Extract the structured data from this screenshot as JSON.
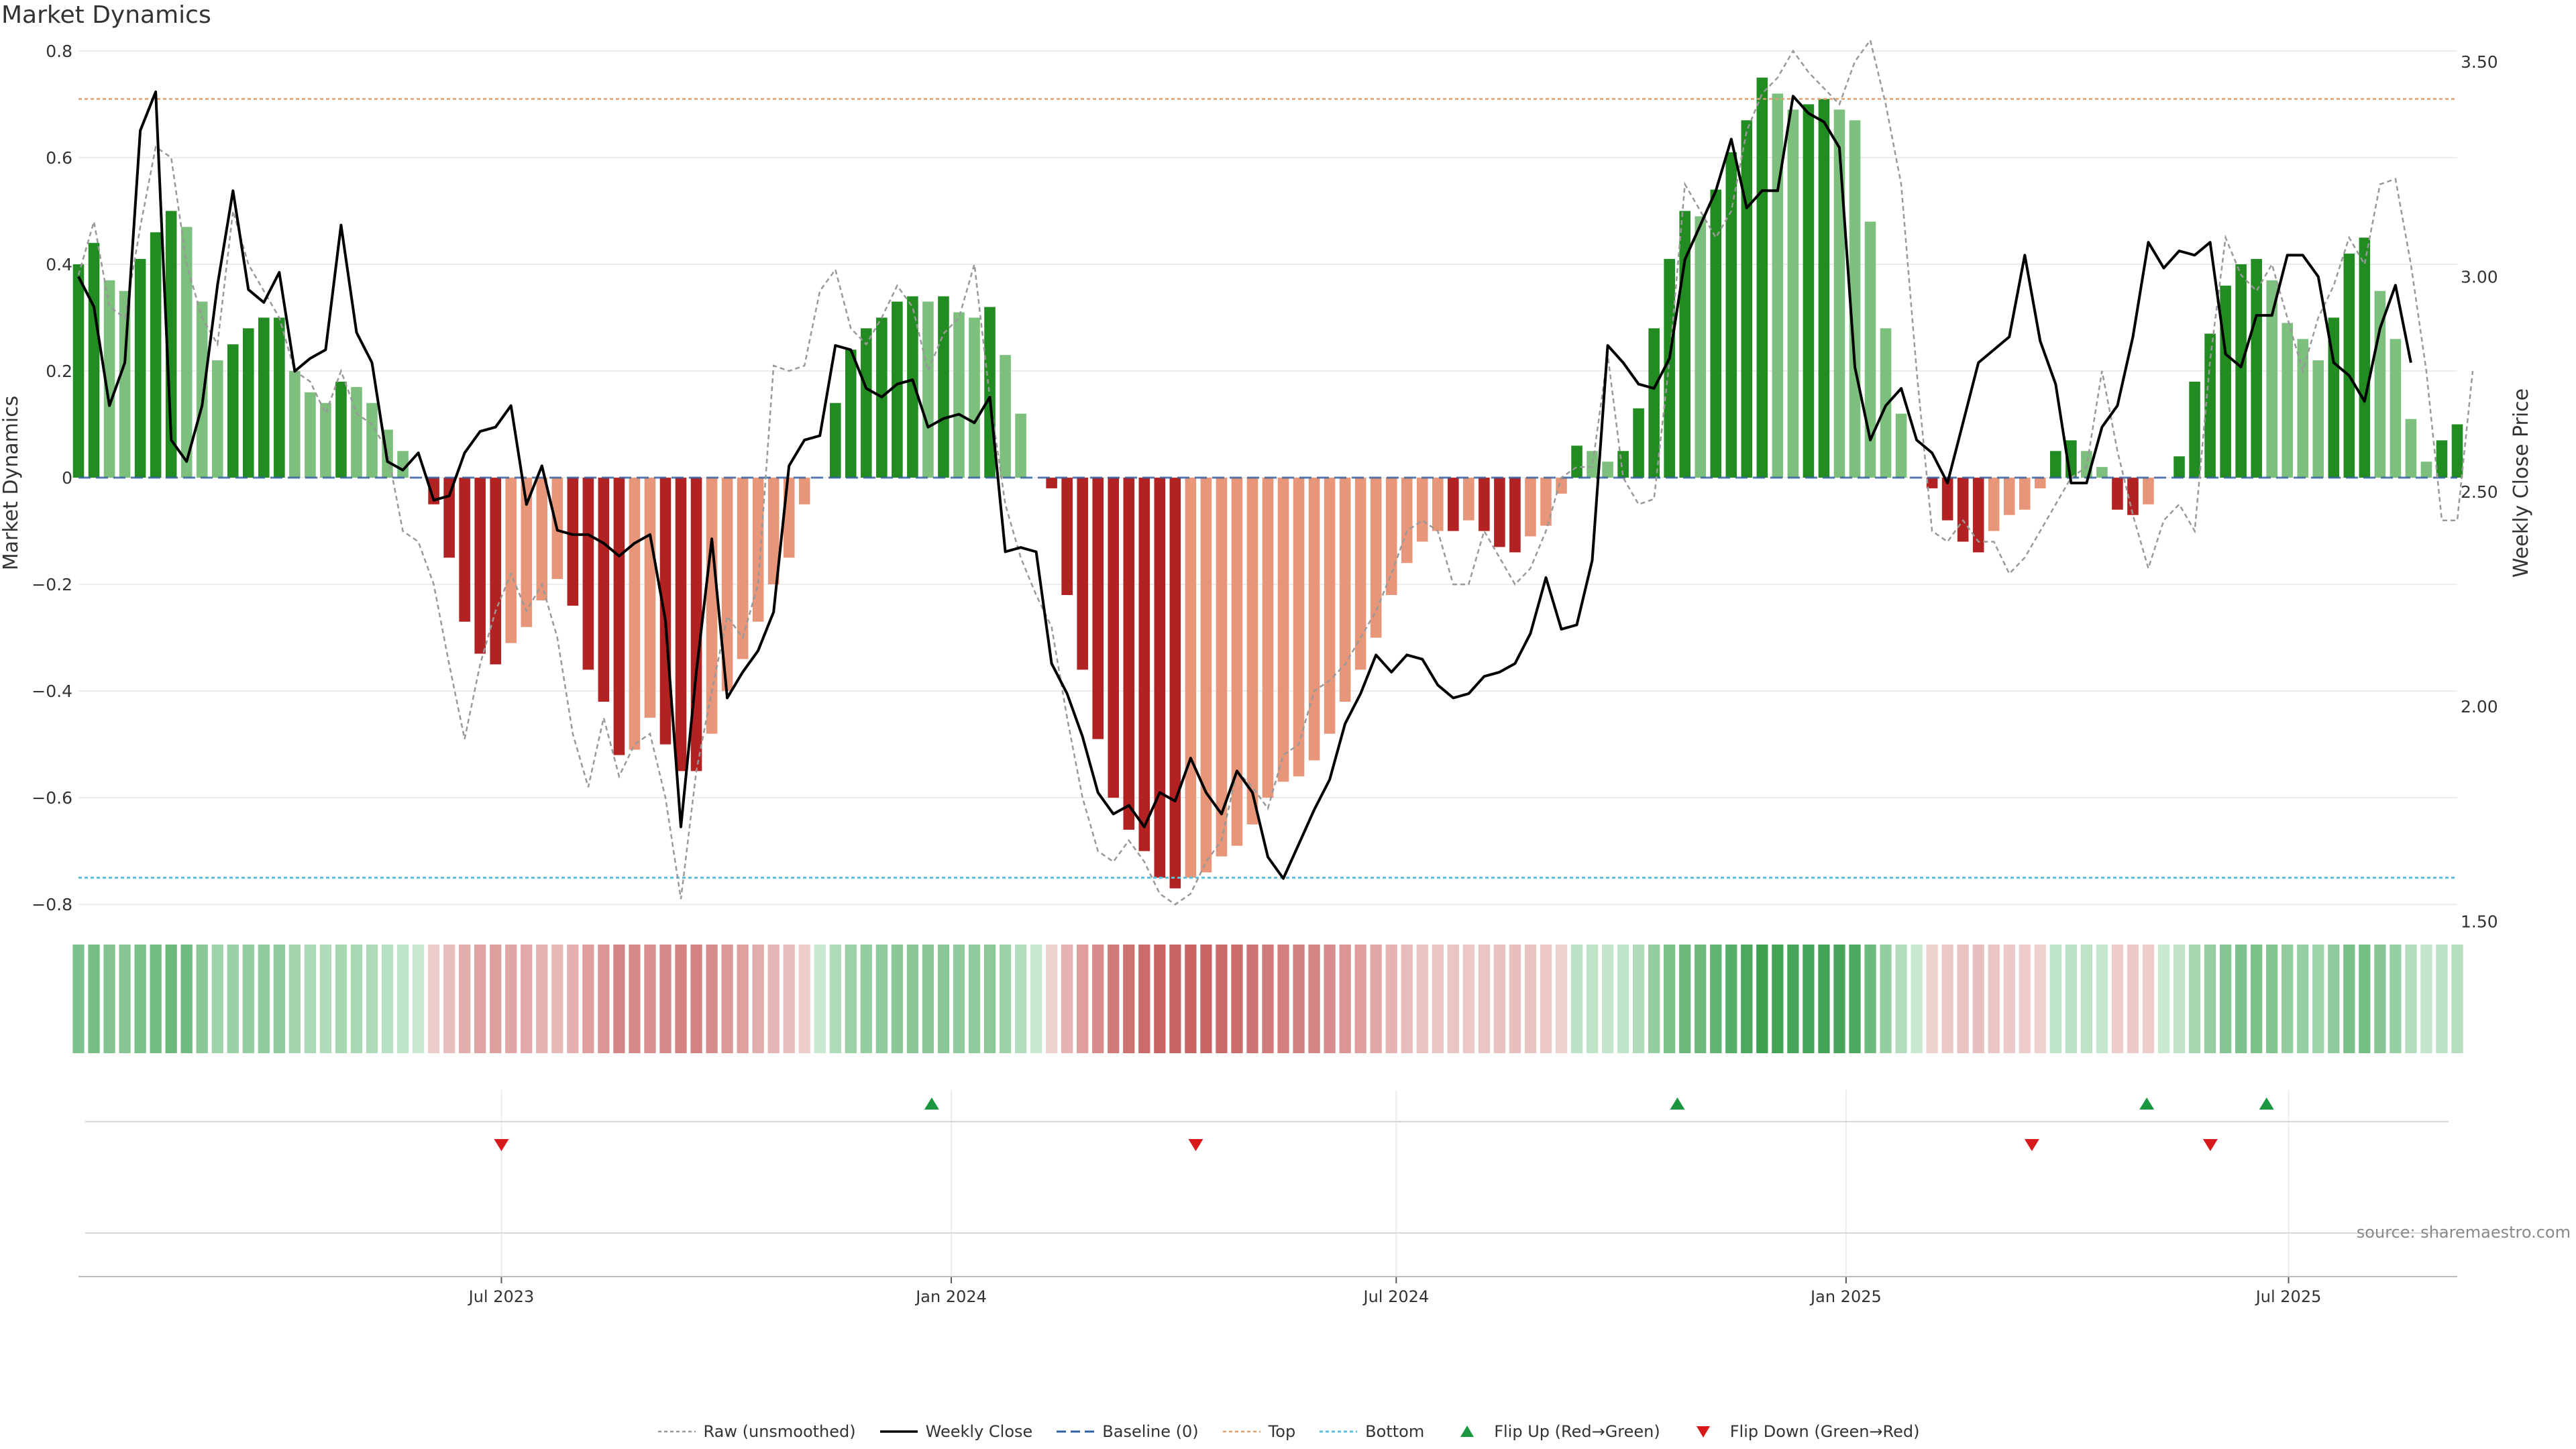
{
  "title": "Market Dynamics",
  "source": "source: sharemaestro.com",
  "chart_data": {
    "type": "bar",
    "left_axis": {
      "label": "Market Dynamics",
      "ylim": [
        -0.84,
        0.82
      ],
      "ticks": [
        0.8,
        0.6,
        0.4,
        0.2,
        0,
        -0.2,
        -0.4,
        -0.6,
        -0.8
      ],
      "tick_labels": [
        "0.8",
        "0.6",
        "0.4",
        "0.2",
        "0",
        "−0.2",
        "−0.4",
        "−0.6",
        "−0.8"
      ]
    },
    "right_axis": {
      "label": "Weekly Close Price",
      "ylim": [
        1.49,
        3.55
      ],
      "ticks": [
        3.5,
        3.0,
        2.5,
        2.0,
        1.5
      ],
      "tick_labels": [
        "3.50",
        "3.00",
        "2.50",
        "2.00",
        "1.50"
      ]
    },
    "x_axis": {
      "start": "2023-01-09",
      "end": "2025-09-08",
      "ticks": [
        "2023-07-01",
        "2024-01-01",
        "2024-07-01",
        "2025-01-01",
        "2025-07-01"
      ],
      "tick_labels": [
        "Jul 2023",
        "Jan 2024",
        "Jul 2024",
        "Jan 2025",
        "Jul 2025"
      ]
    },
    "reference_lines": {
      "top": 0.71,
      "bottom": -0.75,
      "baseline": 0
    },
    "colors": {
      "strong_up": "#228b22",
      "weak_up": "#7dbf7d",
      "strong_down": "#b22222",
      "weak_down": "#e8967a",
      "close": "#000000",
      "raw": "#999999",
      "top": "#e0a070",
      "bottom": "#5bc0de",
      "baseline": "#2f5f9f",
      "flip_up": "#1a9641",
      "flip_down": "#d7191c"
    },
    "dynamics": [
      0.4,
      0.44,
      0.37,
      0.35,
      0.41,
      0.46,
      0.5,
      0.47,
      0.33,
      0.22,
      0.25,
      0.28,
      0.3,
      0.3,
      0.2,
      0.16,
      0.14,
      0.18,
      0.17,
      0.14,
      0.09,
      0.05,
      0.0,
      -0.05,
      -0.15,
      -0.27,
      -0.33,
      -0.35,
      -0.31,
      -0.28,
      -0.23,
      -0.19,
      -0.24,
      -0.36,
      -0.42,
      -0.52,
      -0.51,
      -0.45,
      -0.5,
      -0.55,
      -0.55,
      -0.48,
      -0.4,
      -0.34,
      -0.27,
      -0.2,
      -0.15,
      -0.05,
      0.0,
      0.14,
      0.24,
      0.28,
      0.3,
      0.33,
      0.34,
      0.33,
      0.34,
      0.31,
      0.3,
      0.32,
      0.23,
      0.12,
      0.0,
      -0.02,
      -0.22,
      -0.36,
      -0.49,
      -0.6,
      -0.66,
      -0.7,
      -0.75,
      -0.77,
      -0.75,
      -0.74,
      -0.71,
      -0.69,
      -0.65,
      -0.6,
      -0.57,
      -0.56,
      -0.53,
      -0.48,
      -0.42,
      -0.36,
      -0.3,
      -0.22,
      -0.16,
      -0.12,
      -0.1,
      -0.1,
      -0.08,
      -0.1,
      -0.13,
      -0.14,
      -0.11,
      -0.09,
      -0.03,
      0.06,
      0.05,
      0.03,
      0.05,
      0.13,
      0.28,
      0.41,
      0.5,
      0.49,
      0.54,
      0.61,
      0.67,
      0.75,
      0.72,
      0.69,
      0.7,
      0.71,
      0.69,
      0.67,
      0.48,
      0.28,
      0.12,
      0.0,
      -0.02,
      -0.08,
      -0.12,
      -0.14,
      -0.1,
      -0.07,
      -0.06,
      -0.02,
      0.05,
      0.07,
      0.05,
      0.02,
      -0.06,
      -0.07,
      -0.05,
      0.0,
      0.04,
      0.18,
      0.27,
      0.36,
      0.4,
      0.41,
      0.37,
      0.29,
      0.26,
      0.22,
      0.3,
      0.42,
      0.45,
      0.35,
      0.26,
      0.11,
      0.03,
      0.07,
      0.1
    ],
    "raw": [
      0.38,
      0.48,
      0.32,
      0.3,
      0.47,
      0.62,
      0.6,
      0.4,
      0.3,
      0.25,
      0.5,
      0.4,
      0.35,
      0.3,
      0.2,
      0.18,
      0.12,
      0.2,
      0.12,
      0.1,
      0.05,
      -0.1,
      -0.12,
      -0.2,
      -0.35,
      -0.49,
      -0.35,
      -0.25,
      -0.18,
      -0.25,
      -0.2,
      -0.3,
      -0.48,
      -0.58,
      -0.45,
      -0.56,
      -0.5,
      -0.48,
      -0.6,
      -0.79,
      -0.55,
      -0.4,
      -0.26,
      -0.3,
      -0.2,
      0.21,
      0.2,
      0.21,
      0.35,
      0.39,
      0.28,
      0.25,
      0.3,
      0.36,
      0.32,
      0.2,
      0.27,
      0.3,
      0.4,
      0.15,
      -0.05,
      -0.15,
      -0.22,
      -0.28,
      -0.45,
      -0.6,
      -0.7,
      -0.72,
      -0.68,
      -0.72,
      -0.78,
      -0.8,
      -0.78,
      -0.72,
      -0.68,
      -0.55,
      -0.58,
      -0.62,
      -0.52,
      -0.5,
      -0.4,
      -0.38,
      -0.35,
      -0.3,
      -0.25,
      -0.18,
      -0.1,
      -0.08,
      -0.1,
      -0.2,
      -0.2,
      -0.1,
      -0.15,
      -0.2,
      -0.17,
      -0.1,
      0.0,
      0.02,
      0.02,
      0.23,
      0.0,
      -0.05,
      -0.04,
      0.22,
      0.55,
      0.5,
      0.45,
      0.5,
      0.65,
      0.72,
      0.75,
      0.8,
      0.76,
      0.73,
      0.7,
      0.78,
      0.82,
      0.7,
      0.55,
      0.2,
      -0.1,
      -0.12,
      -0.08,
      -0.12,
      -0.12,
      -0.18,
      -0.15,
      -0.1,
      -0.05,
      0.0,
      0.02,
      0.2,
      0.05,
      -0.07,
      -0.17,
      -0.08,
      -0.05,
      -0.1,
      0.22,
      0.45,
      0.38,
      0.35,
      0.4,
      0.3,
      0.2,
      0.3,
      0.36,
      0.45,
      0.4,
      0.55,
      0.56,
      0.4,
      0.2,
      -0.08,
      -0.08,
      0.2
    ],
    "close": [
      3.0,
      2.93,
      2.7,
      2.8,
      3.34,
      3.43,
      2.62,
      2.57,
      2.7,
      2.98,
      3.2,
      2.97,
      2.94,
      3.01,
      2.78,
      2.81,
      2.83,
      3.12,
      2.87,
      2.8,
      2.57,
      2.55,
      2.59,
      2.48,
      2.49,
      2.59,
      2.64,
      2.65,
      2.7,
      2.47,
      2.56,
      2.41,
      2.4,
      2.4,
      2.38,
      2.35,
      2.38,
      2.4,
      2.2,
      1.72,
      2.08,
      2.39,
      2.02,
      2.08,
      2.13,
      2.22,
      2.56,
      2.62,
      2.63,
      2.84,
      2.83,
      2.74,
      2.72,
      2.75,
      2.76,
      2.65,
      2.67,
      2.68,
      2.66,
      2.72,
      2.36,
      2.37,
      2.36,
      2.1,
      2.03,
      1.93,
      1.8,
      1.75,
      1.77,
      1.72,
      1.8,
      1.78,
      1.88,
      1.8,
      1.75,
      1.85,
      1.8,
      1.65,
      1.6,
      1.68,
      1.76,
      1.83,
      1.96,
      2.03,
      2.12,
      2.08,
      2.12,
      2.11,
      2.05,
      2.02,
      2.03,
      2.07,
      2.08,
      2.1,
      2.17,
      2.3,
      2.18,
      2.19,
      2.34,
      2.84,
      2.8,
      2.75,
      2.74,
      2.81,
      3.04,
      3.12,
      3.2,
      3.32,
      3.16,
      3.2,
      3.2,
      3.42,
      3.38,
      3.36,
      3.3,
      2.79,
      2.62,
      2.7,
      2.74,
      2.62,
      2.59,
      2.52,
      2.66,
      2.8,
      2.83,
      2.86,
      3.05,
      2.85,
      2.75,
      2.52,
      2.52,
      2.65,
      2.7,
      2.86,
      3.08,
      3.02,
      3.06,
      3.05,
      3.08,
      2.82,
      2.79,
      2.91,
      2.91,
      3.05,
      3.05,
      3.0,
      2.8,
      2.77,
      2.71,
      2.88,
      2.98,
      2.8
    ],
    "flips": [
      {
        "date": "2023-07-01",
        "type": "down"
      },
      {
        "date": "2023-12-24",
        "type": "up"
      },
      {
        "date": "2024-04-10",
        "type": "down"
      },
      {
        "date": "2024-10-24",
        "type": "up"
      },
      {
        "date": "2025-03-18",
        "type": "down"
      },
      {
        "date": "2025-05-04",
        "type": "up"
      },
      {
        "date": "2025-05-30",
        "type": "down"
      },
      {
        "date": "2025-06-22",
        "type": "up"
      }
    ]
  },
  "legend": [
    {
      "label": "Raw (unsmoothed)",
      "kind": "raw"
    },
    {
      "label": "Weekly Close",
      "kind": "close"
    },
    {
      "label": "Baseline (0)",
      "kind": "baseline"
    },
    {
      "label": "Top",
      "kind": "top"
    },
    {
      "label": "Bottom",
      "kind": "bottom"
    },
    {
      "label": "Flip Up (Red→Green)",
      "kind": "flip_up"
    },
    {
      "label": "Flip Down (Green→Red)",
      "kind": "flip_down"
    }
  ]
}
